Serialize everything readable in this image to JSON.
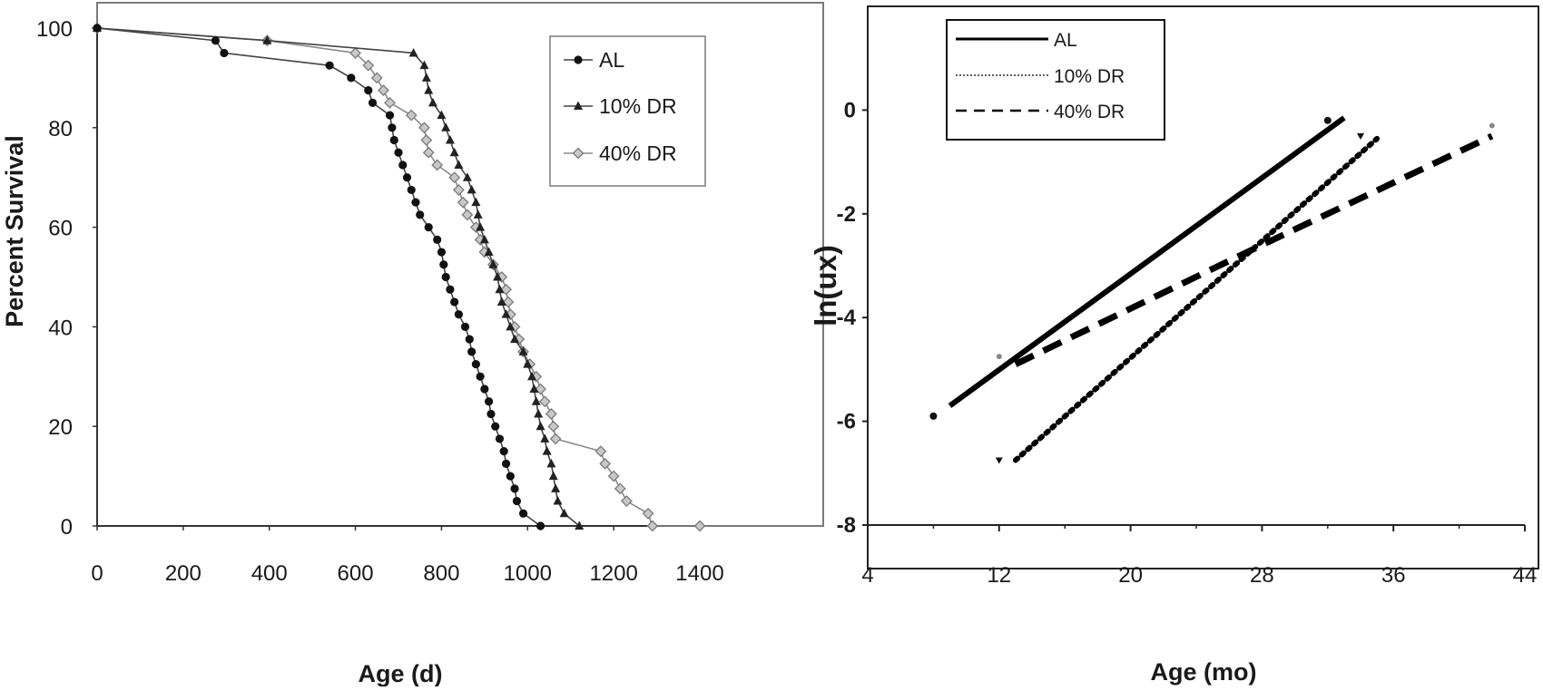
{
  "chart_data": [
    {
      "type": "line",
      "title": "",
      "xlabel": "Age (d)",
      "ylabel": "Percent Survival",
      "xlim": [
        0,
        1400
      ],
      "ylim": [
        0,
        100
      ],
      "xticks": [
        "0",
        "200",
        "400",
        "600",
        "800",
        "1000",
        "1200",
        "1400"
      ],
      "yticks": [
        "0",
        "20",
        "40",
        "60",
        "80",
        "100"
      ],
      "grid": false,
      "legend_position": "top-right",
      "series": [
        {
          "name": "AL",
          "marker": "circle",
          "color": "#111111",
          "points": [
            [
              0,
              100
            ],
            [
              275,
              97.5
            ],
            [
              295,
              95
            ],
            [
              540,
              92.5
            ],
            [
              590,
              90
            ],
            [
              630,
              87.5
            ],
            [
              640,
              85
            ],
            [
              680,
              82.5
            ],
            [
              685,
              80
            ],
            [
              690,
              77.5
            ],
            [
              700,
              75
            ],
            [
              710,
              72.5
            ],
            [
              720,
              70
            ],
            [
              730,
              67.5
            ],
            [
              740,
              65
            ],
            [
              750,
              62.5
            ],
            [
              770,
              60
            ],
            [
              790,
              57.5
            ],
            [
              800,
              55
            ],
            [
              805,
              52.5
            ],
            [
              810,
              50
            ],
            [
              820,
              47.5
            ],
            [
              830,
              45
            ],
            [
              840,
              42.5
            ],
            [
              855,
              40
            ],
            [
              865,
              37.5
            ],
            [
              870,
              35
            ],
            [
              880,
              32.5
            ],
            [
              890,
              30
            ],
            [
              900,
              27.5
            ],
            [
              910,
              25
            ],
            [
              915,
              22.5
            ],
            [
              925,
              20
            ],
            [
              935,
              17.5
            ],
            [
              945,
              15
            ],
            [
              950,
              12.5
            ],
            [
              960,
              10
            ],
            [
              970,
              7.5
            ],
            [
              975,
              5
            ],
            [
              990,
              2.5
            ],
            [
              1030,
              0
            ]
          ]
        },
        {
          "name": "10% DR",
          "marker": "triangle",
          "color": "#222222",
          "points": [
            [
              0,
              100
            ],
            [
              395,
              97.5
            ],
            [
              735,
              95
            ],
            [
              760,
              92.5
            ],
            [
              765,
              90
            ],
            [
              770,
              87.5
            ],
            [
              780,
              85
            ],
            [
              800,
              82.5
            ],
            [
              810,
              80
            ],
            [
              820,
              77.5
            ],
            [
              830,
              75
            ],
            [
              840,
              72.5
            ],
            [
              860,
              70
            ],
            [
              870,
              67.5
            ],
            [
              880,
              65
            ],
            [
              885,
              62.5
            ],
            [
              890,
              60
            ],
            [
              900,
              57.5
            ],
            [
              910,
              55
            ],
            [
              920,
              52.5
            ],
            [
              930,
              50
            ],
            [
              935,
              47.5
            ],
            [
              940,
              45
            ],
            [
              950,
              42.5
            ],
            [
              960,
              40
            ],
            [
              970,
              37.5
            ],
            [
              990,
              35
            ],
            [
              1000,
              32.5
            ],
            [
              1010,
              30
            ],
            [
              1015,
              27.5
            ],
            [
              1020,
              25
            ],
            [
              1025,
              22.5
            ],
            [
              1030,
              20
            ],
            [
              1040,
              17.5
            ],
            [
              1045,
              15
            ],
            [
              1055,
              12.5
            ],
            [
              1060,
              10
            ],
            [
              1065,
              7.5
            ],
            [
              1070,
              5
            ],
            [
              1085,
              2.5
            ],
            [
              1120,
              0
            ]
          ]
        },
        {
          "name": "40% DR",
          "marker": "diamond",
          "color": "#8a8a8a",
          "points": [
            [
              0,
              100
            ],
            [
              395,
              97.5
            ],
            [
              600,
              95
            ],
            [
              630,
              92.5
            ],
            [
              650,
              90
            ],
            [
              665,
              87.5
            ],
            [
              680,
              85
            ],
            [
              730,
              82.5
            ],
            [
              760,
              80
            ],
            [
              765,
              77.5
            ],
            [
              770,
              75
            ],
            [
              790,
              72.5
            ],
            [
              830,
              70
            ],
            [
              840,
              67.5
            ],
            [
              850,
              65
            ],
            [
              860,
              62.5
            ],
            [
              880,
              60
            ],
            [
              890,
              57.5
            ],
            [
              900,
              55
            ],
            [
              920,
              52.5
            ],
            [
              940,
              50
            ],
            [
              950,
              47.5
            ],
            [
              955,
              45
            ],
            [
              960,
              42.5
            ],
            [
              970,
              40
            ],
            [
              980,
              37.5
            ],
            [
              990,
              35
            ],
            [
              1005,
              32.5
            ],
            [
              1020,
              30
            ],
            [
              1030,
              27.5
            ],
            [
              1040,
              25
            ],
            [
              1055,
              22.5
            ],
            [
              1060,
              20
            ],
            [
              1065,
              17.5
            ],
            [
              1170,
              15
            ],
            [
              1180,
              12.5
            ],
            [
              1200,
              10
            ],
            [
              1215,
              7.5
            ],
            [
              1230,
              5
            ],
            [
              1280,
              2.5
            ],
            [
              1290,
              0
            ],
            [
              1400,
              0
            ]
          ]
        }
      ]
    },
    {
      "type": "line",
      "title": "",
      "xlabel": "Age (mo)",
      "ylabel": "ln(ux)",
      "xlim": [
        4,
        44
      ],
      "ylim": [
        -8,
        2
      ],
      "xticks": [
        "4",
        "12",
        "20",
        "28",
        "36",
        "44"
      ],
      "yticks": [
        "0",
        "-2",
        "-4",
        "-6",
        "-8"
      ],
      "grid": false,
      "legend_position": "top-left",
      "series": [
        {
          "name": "AL",
          "style": "solid",
          "color": "#000000",
          "line": [
            [
              9,
              -5.7
            ],
            [
              33,
              -0.15
            ]
          ],
          "points": [
            [
              8,
              -5.9
            ],
            [
              32,
              -0.2
            ]
          ]
        },
        {
          "name": "10% DR",
          "style": "dotted",
          "color": "#000000",
          "line": [
            [
              13,
              -6.75
            ],
            [
              35,
              -0.55
            ]
          ],
          "points": [
            [
              12,
              -6.75
            ],
            [
              34,
              -0.5
            ]
          ]
        },
        {
          "name": "40% DR",
          "style": "dashed",
          "color": "#000000",
          "line": [
            [
              13,
              -4.9
            ],
            [
              28,
              -2.6
            ],
            [
              42,
              -0.5
            ]
          ],
          "points": [
            [
              12,
              -4.75
            ],
            [
              42,
              -0.3
            ]
          ]
        }
      ]
    }
  ]
}
